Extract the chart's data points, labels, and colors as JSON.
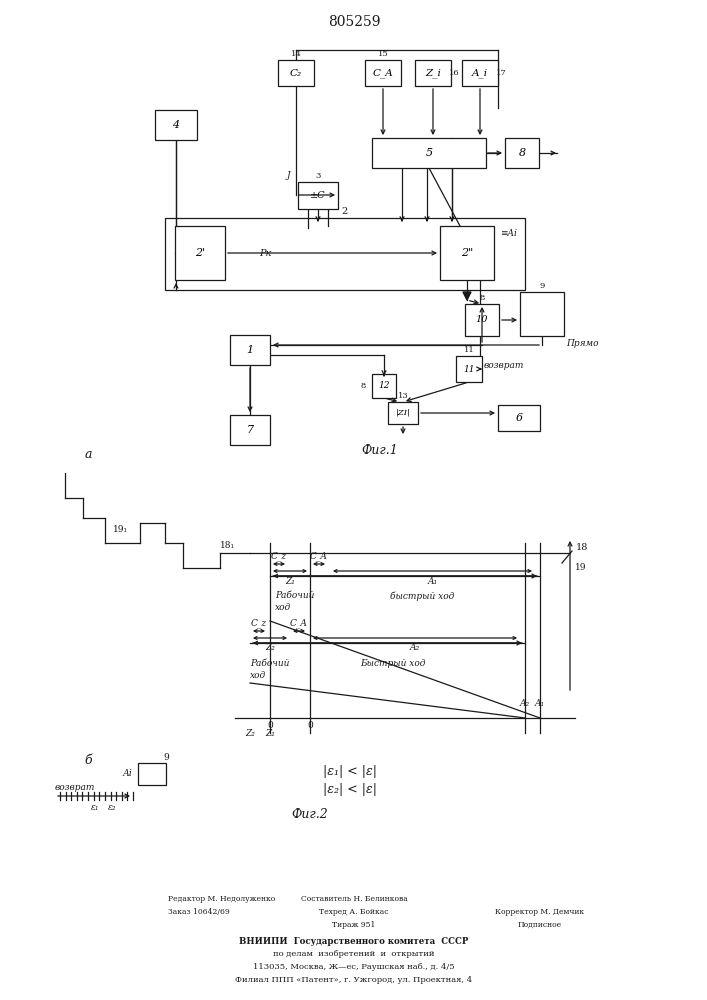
{
  "title": "805259",
  "fig1_label": "Фиг.1",
  "fig2_label": "Фиг.2",
  "fig_a_label": "а",
  "fig_b_label": "б",
  "line_color": "#1a1a1a",
  "footer": {
    "editor": "Редактор М. Недолуженко",
    "order": "Заказ 10642/69",
    "composer": "Составитель Н. Белинкова",
    "techred": "Техред А. Бойкас",
    "tirazh": "Тираж 951",
    "corrector": "Корректор М. Демчик",
    "podpisnoe": "Подписное",
    "vniippi1": "ВНИИПИ  Государственного комитета  СССР",
    "vniippi2": "по делам  изобретений  и  открытий",
    "vniippi3": "113035, Москва, Ж—ес, Раушская наб., д. 4/5",
    "vniippi4": "Филиал ППП «Патент», г. Ужгород, ул. Проектная, 4"
  }
}
